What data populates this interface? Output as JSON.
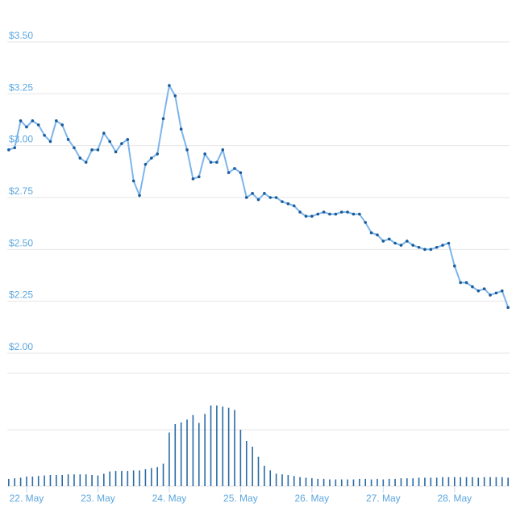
{
  "chart_data": [
    {
      "type": "line",
      "color": "#7cb5ec",
      "marker_color": "#1a5a96",
      "x": [
        -6,
        -4,
        -2,
        0,
        2,
        4,
        6,
        8,
        10,
        12,
        14,
        16,
        18,
        20,
        22,
        24,
        26,
        28,
        30,
        32,
        34,
        36,
        38,
        40,
        42,
        44,
        46,
        48,
        50,
        52,
        54,
        56,
        58,
        60,
        62,
        64,
        66,
        68,
        70,
        72,
        74,
        76,
        78,
        80,
        82,
        84,
        86,
        88,
        90,
        92,
        94,
        96,
        98,
        100,
        102,
        104,
        106,
        108,
        110,
        112,
        114,
        116,
        118,
        120,
        122,
        124,
        126,
        128,
        130,
        132,
        134,
        136,
        138,
        140,
        142,
        144,
        146,
        148,
        150,
        152,
        154,
        156,
        158,
        160,
        162
      ],
      "values": [
        2.98,
        2.99,
        3.12,
        3.09,
        3.12,
        3.1,
        3.05,
        3.02,
        3.12,
        3.1,
        3.03,
        2.99,
        2.94,
        2.92,
        2.98,
        2.98,
        3.06,
        3.02,
        2.97,
        3.01,
        3.03,
        2.83,
        2.76,
        2.91,
        2.94,
        2.96,
        3.13,
        3.29,
        3.24,
        3.08,
        2.98,
        2.84,
        2.85,
        2.96,
        2.92,
        2.92,
        2.98,
        2.87,
        2.89,
        2.87,
        2.75,
        2.77,
        2.74,
        2.77,
        2.75,
        2.75,
        2.73,
        2.72,
        2.71,
        2.68,
        2.66,
        2.66,
        2.67,
        2.68,
        2.67,
        2.67,
        2.68,
        2.68,
        2.67,
        2.67,
        2.63,
        2.58,
        2.57,
        2.54,
        2.55,
        2.53,
        2.52,
        2.54,
        2.52,
        2.51,
        2.5,
        2.5,
        2.51,
        2.52,
        2.53,
        2.42,
        2.34,
        2.34,
        2.32,
        2.3,
        2.31,
        2.28,
        2.29,
        2.3,
        2.22
      ],
      "xlim": [
        -6.5,
        162.5
      ],
      "ylim": [
        2.0,
        3.5
      ],
      "yticks": [
        {
          "value": 2.0,
          "label": "$2.00"
        },
        {
          "value": 2.25,
          "label": "$2.25"
        },
        {
          "value": 2.5,
          "label": "$2.50"
        },
        {
          "value": 2.75,
          "label": "$2.75"
        },
        {
          "value": 3.0,
          "label": "$3.00"
        },
        {
          "value": 3.25,
          "label": "$3.25"
        },
        {
          "value": 3.5,
          "label": "$3.50"
        }
      ],
      "grid": true
    },
    {
      "type": "bar",
      "color": "#2a6aa6",
      "x": [
        -6,
        -4,
        -2,
        0,
        2,
        4,
        6,
        8,
        10,
        12,
        14,
        16,
        18,
        20,
        22,
        24,
        26,
        28,
        30,
        32,
        34,
        36,
        38,
        40,
        42,
        44,
        46,
        48,
        50,
        52,
        54,
        56,
        58,
        60,
        62,
        64,
        66,
        68,
        70,
        72,
        74,
        76,
        78,
        80,
        82,
        84,
        86,
        88,
        90,
        92,
        94,
        96,
        98,
        100,
        102,
        104,
        106,
        108,
        110,
        112,
        114,
        116,
        118,
        120,
        122,
        124,
        126,
        128,
        130,
        132,
        134,
        136,
        138,
        140,
        142,
        144,
        146,
        148,
        150,
        152,
        154,
        156,
        158,
        160,
        162
      ],
      "values": [
        13,
        14,
        15,
        17,
        17,
        18,
        19,
        20,
        20,
        20,
        21,
        21,
        21,
        21,
        20,
        19,
        22,
        26,
        27,
        27,
        27,
        28,
        28,
        30,
        32,
        34,
        40,
        95,
        110,
        113,
        118,
        126,
        112,
        128,
        143,
        143,
        141,
        139,
        135,
        100,
        80,
        70,
        52,
        36,
        28,
        22,
        21,
        20,
        18,
        16,
        15,
        14,
        13,
        13,
        12,
        12,
        12,
        12,
        12,
        13,
        13,
        12,
        13,
        12,
        13,
        13,
        14,
        14,
        14,
        15,
        15,
        15,
        15,
        16,
        16,
        16,
        16,
        16,
        16,
        15,
        16,
        16,
        16,
        16,
        15
      ],
      "xlim": [
        -6.5,
        162.5
      ],
      "ylim": [
        0,
        200
      ],
      "yticks": [
        0,
        100,
        200
      ],
      "grid": true,
      "xticks": [
        {
          "value": 0,
          "label": "22. May"
        },
        {
          "value": 24,
          "label": "23. May"
        },
        {
          "value": 48,
          "label": "24. May"
        },
        {
          "value": 72,
          "label": "25. May"
        },
        {
          "value": 96,
          "label": "26. May"
        },
        {
          "value": 120,
          "label": "27. May"
        },
        {
          "value": 144,
          "label": "28. May"
        }
      ]
    }
  ]
}
